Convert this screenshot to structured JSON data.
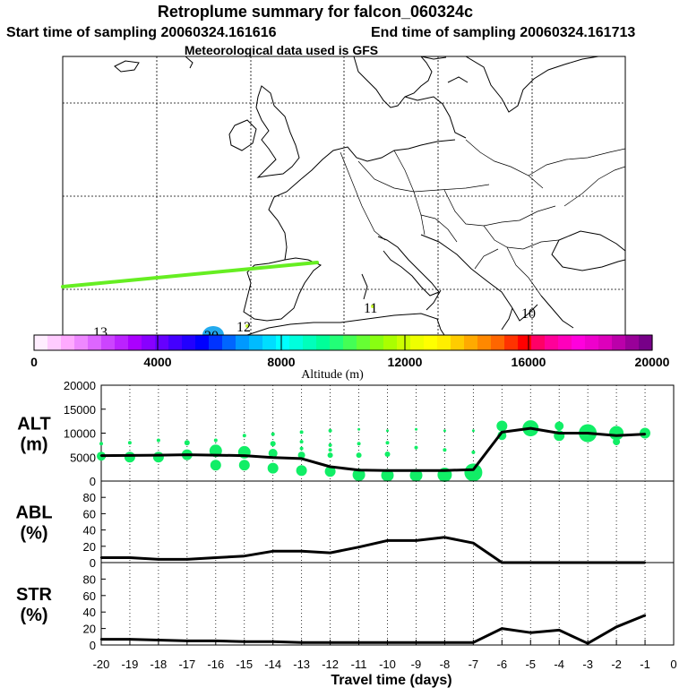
{
  "header": {
    "title": "Retroplume summary for falcon_060324c",
    "start_label": "Start time of sampling 20060324.161616",
    "end_label": "End time of sampling 20060324.161713",
    "met_label": "Meteorological data used is GFS"
  },
  "colors": {
    "plume_track": "#66ee22",
    "cluster_dot": "#11ee66",
    "line": "#000000",
    "grid": "#000000"
  },
  "map": {
    "markers": [
      {
        "label": "13",
        "kind": "text"
      },
      {
        "label": "20",
        "kind": "blob"
      },
      {
        "label": "12",
        "kind": "text"
      },
      {
        "label": "11",
        "kind": "text"
      },
      {
        "label": "10",
        "kind": "text"
      }
    ]
  },
  "colorbar": {
    "ticks": [
      "0",
      "4000",
      "8000",
      "12000",
      "16000",
      "20000"
    ],
    "label": "Altitude (m)",
    "stops": [
      "#ffeeff",
      "#ffccff",
      "#ffaaff",
      "#ee88ff",
      "#dd66ff",
      "#cc44ff",
      "#bb22ff",
      "#aa00ff",
      "#8800ff",
      "#6600ff",
      "#4400ff",
      "#2200ff",
      "#0000ff",
      "#0033ff",
      "#0066ff",
      "#0099ff",
      "#00bbff",
      "#00ddff",
      "#00ffff",
      "#00ffdd",
      "#00ffbb",
      "#00ff99",
      "#22ff77",
      "#44ff55",
      "#66ff33",
      "#88ff11",
      "#aaff00",
      "#ccff00",
      "#eeff00",
      "#ffff00",
      "#ffee00",
      "#ffcc00",
      "#ffaa00",
      "#ff8800",
      "#ff6600",
      "#ff3300",
      "#ff0000",
      "#ff0066",
      "#ff0099",
      "#ff00bb",
      "#ff00dd",
      "#ee00cc",
      "#dd00bb",
      "#bb00aa",
      "#990099",
      "#770088"
    ]
  },
  "chart_data": [
    {
      "type": "line",
      "panel": "ALT",
      "ylabel": [
        "ALT",
        "(m)"
      ],
      "ylim": [
        0,
        20000
      ],
      "yticks": [
        "0",
        "5000",
        "10000",
        "15000",
        "20000"
      ],
      "x": [
        -20,
        -19,
        -18,
        -17,
        -16,
        -15,
        -14,
        -13,
        -12,
        -11,
        -10,
        -9,
        -8,
        -7,
        -6,
        -5,
        -4,
        -3,
        -2,
        -1
      ],
      "values": [
        5300,
        5350,
        5400,
        5500,
        5400,
        5300,
        4900,
        4700,
        3000,
        2300,
        2200,
        2200,
        2200,
        2400,
        10200,
        11000,
        10000,
        10000,
        9500,
        9800
      ],
      "clusters": [
        {
          "x": -20,
          "y": 5200,
          "s": 5
        },
        {
          "x": -19,
          "y": 5000,
          "s": 6
        },
        {
          "x": -18,
          "y": 5000,
          "s": 6
        },
        {
          "x": -17,
          "y": 5500,
          "s": 6
        },
        {
          "x": -16,
          "y": 6300,
          "s": 7
        },
        {
          "x": -15,
          "y": 6000,
          "s": 7
        },
        {
          "x": -14,
          "y": 5800,
          "s": 5
        },
        {
          "x": -13,
          "y": 5400,
          "s": 4
        },
        {
          "x": -12,
          "y": 5400,
          "s": 3
        },
        {
          "x": -11,
          "y": 5400,
          "s": 3
        },
        {
          "x": -10,
          "y": 5600,
          "s": 3
        },
        {
          "x": -16,
          "y": 3300,
          "s": 6
        },
        {
          "x": -15,
          "y": 3300,
          "s": 6
        },
        {
          "x": -14,
          "y": 2700,
          "s": 6
        },
        {
          "x": -13,
          "y": 2200,
          "s": 6
        },
        {
          "x": -12,
          "y": 2000,
          "s": 6
        },
        {
          "x": -11,
          "y": 1300,
          "s": 7
        },
        {
          "x": -10,
          "y": 1200,
          "s": 7
        },
        {
          "x": -9,
          "y": 1200,
          "s": 7
        },
        {
          "x": -8,
          "y": 1300,
          "s": 8
        },
        {
          "x": -7,
          "y": 1800,
          "s": 10
        },
        {
          "x": -6,
          "y": 11500,
          "s": 6
        },
        {
          "x": -6,
          "y": 9500,
          "s": 5
        },
        {
          "x": -5,
          "y": 11000,
          "s": 9
        },
        {
          "x": -4,
          "y": 11500,
          "s": 5
        },
        {
          "x": -4,
          "y": 9500,
          "s": 6
        },
        {
          "x": -3,
          "y": 10000,
          "s": 10
        },
        {
          "x": -2,
          "y": 10000,
          "s": 8
        },
        {
          "x": -2,
          "y": 8200,
          "s": 4
        },
        {
          "x": -1,
          "y": 10000,
          "s": 6
        },
        {
          "x": -20,
          "y": 7800,
          "s": 2
        },
        {
          "x": -19,
          "y": 8000,
          "s": 2
        },
        {
          "x": -18,
          "y": 8500,
          "s": 2
        },
        {
          "x": -17,
          "y": 8000,
          "s": 3
        },
        {
          "x": -16,
          "y": 8500,
          "s": 2
        },
        {
          "x": -15,
          "y": 9500,
          "s": 2
        },
        {
          "x": -14,
          "y": 9800,
          "s": 2
        },
        {
          "x": -13,
          "y": 10200,
          "s": 2
        },
        {
          "x": -12,
          "y": 10500,
          "s": 2
        },
        {
          "x": -11,
          "y": 10800,
          "s": 1.5
        },
        {
          "x": -10,
          "y": 10500,
          "s": 1.5
        },
        {
          "x": -9,
          "y": 10800,
          "s": 1.5
        },
        {
          "x": -8,
          "y": 10500,
          "s": 1.5
        },
        {
          "x": -7,
          "y": 10500,
          "s": 1.5
        },
        {
          "x": -14,
          "y": 7800,
          "s": 3
        },
        {
          "x": -13,
          "y": 8200,
          "s": 2
        },
        {
          "x": -12,
          "y": 7500,
          "s": 2
        },
        {
          "x": -11,
          "y": 7800,
          "s": 2
        },
        {
          "x": -10,
          "y": 8000,
          "s": 2
        },
        {
          "x": -9,
          "y": 7000,
          "s": 2
        },
        {
          "x": -8,
          "y": 6500,
          "s": 2
        },
        {
          "x": -7,
          "y": 6000,
          "s": 2
        },
        {
          "x": -13,
          "y": 6800,
          "s": 2
        },
        {
          "x": -12,
          "y": 6500,
          "s": 2
        }
      ]
    },
    {
      "type": "line",
      "panel": "ABL",
      "ylabel": [
        "ABL",
        "(%)"
      ],
      "ylim": [
        0,
        100
      ],
      "yticks": [
        "0",
        "20",
        "40",
        "60",
        "80"
      ],
      "x": [
        -20,
        -19,
        -18,
        -17,
        -16,
        -15,
        -14,
        -13,
        -12,
        -11,
        -10,
        -9,
        -8,
        -7,
        -6,
        -5,
        -4,
        -3,
        -2,
        -1
      ],
      "values": [
        6,
        6,
        4,
        4,
        6,
        8,
        14,
        14,
        12,
        19,
        27,
        27,
        31,
        24,
        0,
        0,
        0,
        0,
        0,
        0
      ]
    },
    {
      "type": "line",
      "panel": "STR",
      "ylabel": [
        "STR",
        "(%)"
      ],
      "ylim": [
        0,
        100
      ],
      "yticks": [
        "0",
        "20",
        "40",
        "60",
        "80"
      ],
      "x": [
        -20,
        -19,
        -18,
        -17,
        -16,
        -15,
        -14,
        -13,
        -12,
        -11,
        -10,
        -9,
        -8,
        -7,
        -6,
        -5,
        -4,
        -3,
        -2,
        -1
      ],
      "values": [
        7,
        7,
        6,
        5,
        5,
        4,
        4,
        3,
        3,
        3,
        3,
        3,
        3,
        3,
        20,
        15,
        18,
        2,
        22,
        36
      ]
    }
  ],
  "xaxis": {
    "ticks": [
      "-20",
      "-19",
      "-18",
      "-17",
      "-16",
      "-15",
      "-14",
      "-13",
      "-12",
      "-11",
      "-10",
      "-9",
      "-8",
      "-7",
      "-6",
      "-5",
      "-4",
      "-3",
      "-2",
      "-1",
      "0"
    ],
    "label": "Travel time (days)"
  }
}
